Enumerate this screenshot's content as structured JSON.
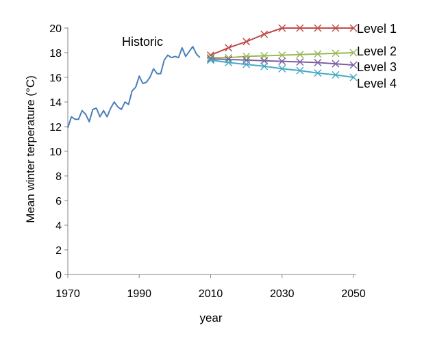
{
  "chart_data": {
    "type": "line",
    "xlabel": "year",
    "ylabel": "Mean winter terperature (°C)",
    "xlim": [
      1970,
      2050
    ],
    "ylim": [
      0,
      20
    ],
    "x_ticks": [
      "1970",
      "1990",
      "2010",
      "2030",
      "2050"
    ],
    "y_ticks": [
      "0",
      "2",
      "4",
      "6",
      "8",
      "10",
      "12",
      "14",
      "16",
      "18",
      "20"
    ],
    "grid": false,
    "legend": "none",
    "series": [
      {
        "name": "Historic",
        "color": "#4a7ebb",
        "marker": "none",
        "x": [
          1970,
          1971,
          1972,
          1973,
          1974,
          1975,
          1976,
          1977,
          1978,
          1979,
          1980,
          1981,
          1982,
          1983,
          1984,
          1985,
          1986,
          1987,
          1988,
          1989,
          1990,
          1991,
          1992,
          1993,
          1994,
          1995,
          1996,
          1997,
          1998,
          1999,
          2000,
          2001,
          2002,
          2003,
          2004,
          2005,
          2006,
          2007
        ],
        "values": [
          11.9,
          12.8,
          12.6,
          12.6,
          13.3,
          13.0,
          12.4,
          13.4,
          13.5,
          12.8,
          13.3,
          12.8,
          13.5,
          14.0,
          13.6,
          13.4,
          14.0,
          13.8,
          14.9,
          15.2,
          16.1,
          15.5,
          15.6,
          16.0,
          16.7,
          16.3,
          16.3,
          17.4,
          17.8,
          17.6,
          17.7,
          17.6,
          18.4,
          17.7,
          18.1,
          18.5,
          17.9,
          17.6
        ]
      },
      {
        "name": "Level 1",
        "color": "#be4b48",
        "marker": "x",
        "x": [
          2010,
          2015,
          2020,
          2025,
          2030,
          2035,
          2040,
          2045,
          2050
        ],
        "values": [
          17.8,
          18.4,
          18.9,
          19.5,
          20.0,
          20.0,
          20.0,
          20.0,
          20.0
        ]
      },
      {
        "name": "Level 2",
        "color": "#98b954",
        "marker": "x",
        "x": [
          2010,
          2015,
          2020,
          2025,
          2030,
          2035,
          2040,
          2045,
          2050
        ],
        "values": [
          17.6,
          17.6,
          17.7,
          17.75,
          17.8,
          17.85,
          17.9,
          17.95,
          18.0
        ]
      },
      {
        "name": "Level 3",
        "color": "#7d60a0",
        "marker": "x",
        "x": [
          2010,
          2015,
          2020,
          2025,
          2030,
          2035,
          2040,
          2045,
          2050
        ],
        "values": [
          17.5,
          17.45,
          17.4,
          17.35,
          17.3,
          17.25,
          17.2,
          17.1,
          17.0
        ]
      },
      {
        "name": "Level 4",
        "color": "#46aac5",
        "marker": "x",
        "x": [
          2010,
          2015,
          2020,
          2025,
          2030,
          2035,
          2040,
          2045,
          2050
        ],
        "values": [
          17.4,
          17.2,
          17.05,
          16.9,
          16.7,
          16.55,
          16.35,
          16.2,
          16.0
        ]
      }
    ]
  }
}
